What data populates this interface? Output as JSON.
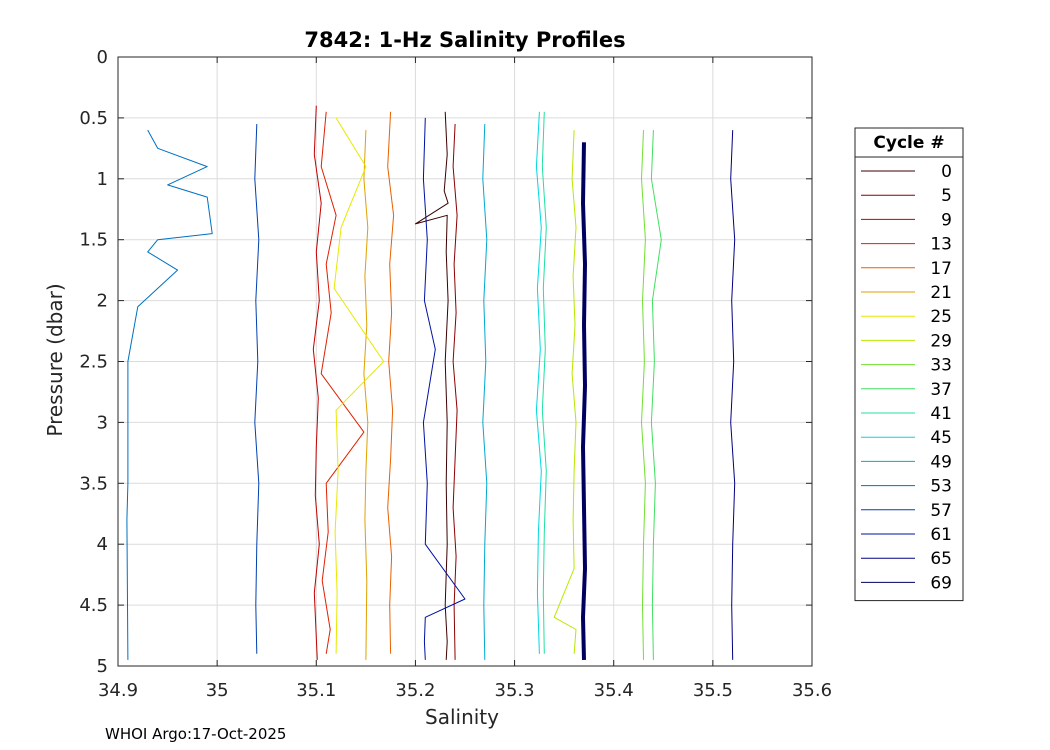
{
  "chart_data": {
    "type": "line",
    "title": "7842: 1-Hz Salinity Profiles",
    "xlabel": "Salinity",
    "ylabel": "Pressure (dbar)",
    "xlim": [
      34.9,
      35.6
    ],
    "ylim": [
      0,
      5
    ],
    "y_reversed": true,
    "grid": true,
    "xticks": [
      "34.9",
      "35",
      "35.1",
      "35.2",
      "35.3",
      "35.4",
      "35.5",
      "35.6"
    ],
    "yticks": [
      "0",
      "0.5",
      "1",
      "1.5",
      "2",
      "2.5",
      "3",
      "3.5",
      "4",
      "4.5",
      "5"
    ],
    "legend": {
      "title": "Cycle #",
      "placement": "outside-right",
      "entries": [
        {
          "label": "0",
          "color": "#3a0000"
        },
        {
          "label": "5",
          "color": "#8b0000"
        },
        {
          "label": "9",
          "color": "#c00000"
        },
        {
          "label": "13",
          "color": "#e02000"
        },
        {
          "label": "17",
          "color": "#e86000"
        },
        {
          "label": "21",
          "color": "#e0a000"
        },
        {
          "label": "25",
          "color": "#e8e800"
        },
        {
          "label": "29",
          "color": "#b8e800"
        },
        {
          "label": "33",
          "color": "#70e030"
        },
        {
          "label": "37",
          "color": "#40e060"
        },
        {
          "label": "41",
          "color": "#20e0a0"
        },
        {
          "label": "45",
          "color": "#00d8e0"
        },
        {
          "label": "49",
          "color": "#00a8d0"
        },
        {
          "label": "53",
          "color": "#0070c0"
        },
        {
          "label": "57",
          "color": "#0040b0"
        },
        {
          "label": "61",
          "color": "#0010a0"
        },
        {
          "label": "65",
          "color": "#000080"
        },
        {
          "label": "69",
          "color": "#000060"
        }
      ]
    },
    "series": [
      {
        "name": "0",
        "color": "#3a0000",
        "x": [
          35.23,
          35.232,
          35.229,
          35.233,
          35.2,
          35.232,
          35.231,
          35.233,
          35.23,
          35.232,
          35.231,
          35.232,
          35.23,
          35.232,
          35.231
        ],
        "y": [
          0.45,
          0.8,
          1.1,
          1.2,
          1.37,
          1.3,
          1.6,
          2.0,
          2.5,
          3.0,
          3.5,
          4.0,
          4.5,
          4.8,
          4.95
        ]
      },
      {
        "name": "5",
        "color": "#8b0000",
        "x": [
          35.24,
          35.238,
          35.242,
          35.239,
          35.241,
          35.238,
          35.242,
          35.24,
          35.238,
          35.241,
          35.239,
          35.24
        ],
        "y": [
          0.55,
          0.9,
          1.3,
          1.7,
          2.1,
          2.5,
          2.9,
          3.3,
          3.7,
          4.1,
          4.5,
          4.95
        ]
      },
      {
        "name": "9",
        "color": "#c00000",
        "x": [
          35.1,
          35.098,
          35.105,
          35.1,
          35.103,
          35.097,
          35.102,
          35.1,
          35.099,
          35.103,
          35.098,
          35.101
        ],
        "y": [
          0.4,
          0.8,
          1.2,
          1.6,
          2.0,
          2.4,
          2.8,
          3.2,
          3.6,
          4.0,
          4.4,
          4.95
        ]
      },
      {
        "name": "13",
        "color": "#e02000",
        "x": [
          35.11,
          35.105,
          35.12,
          35.11,
          35.115,
          35.105,
          35.148,
          35.11,
          35.112,
          35.106,
          35.114,
          35.11
        ],
        "y": [
          0.45,
          0.9,
          1.3,
          1.7,
          2.1,
          2.6,
          3.08,
          3.5,
          3.9,
          4.3,
          4.7,
          4.9
        ]
      },
      {
        "name": "17",
        "color": "#e86000",
        "x": [
          35.175,
          35.172,
          35.178,
          35.174,
          35.176,
          35.173,
          35.177,
          35.175,
          35.172,
          35.176,
          35.174,
          35.175
        ],
        "y": [
          0.45,
          0.9,
          1.3,
          1.7,
          2.1,
          2.5,
          2.9,
          3.3,
          3.7,
          4.1,
          4.5,
          4.9
        ]
      },
      {
        "name": "21",
        "color": "#e0a000",
        "x": [
          35.15,
          35.148,
          35.152,
          35.149,
          35.151,
          35.148,
          35.152,
          35.15,
          35.149,
          35.151,
          35.15
        ],
        "y": [
          0.6,
          1.0,
          1.4,
          1.8,
          2.2,
          2.6,
          3.0,
          3.4,
          3.8,
          4.3,
          4.95
        ]
      },
      {
        "name": "25",
        "color": "#e8e800",
        "x": [
          35.12,
          35.15,
          35.125,
          35.118,
          35.168,
          35.12,
          35.122,
          35.119,
          35.121,
          35.12
        ],
        "y": [
          0.5,
          0.9,
          1.4,
          1.9,
          2.5,
          2.9,
          3.4,
          3.9,
          4.4,
          4.9
        ]
      },
      {
        "name": "29",
        "color": "#b8e800",
        "x": [
          35.36,
          35.358,
          35.362,
          35.359,
          35.361,
          35.358,
          35.362,
          35.36,
          35.359,
          35.36,
          35.34,
          35.362,
          35.36
        ],
        "y": [
          0.6,
          1.0,
          1.4,
          1.8,
          2.2,
          2.6,
          3.0,
          3.4,
          3.8,
          4.2,
          4.6,
          4.7,
          4.9
        ]
      },
      {
        "name": "33",
        "color": "#70e030",
        "x": [
          35.43,
          35.428,
          35.432,
          35.429,
          35.431,
          35.428,
          35.432,
          35.43,
          35.429,
          35.43
        ],
        "y": [
          0.6,
          1.0,
          1.5,
          2.0,
          2.5,
          3.0,
          3.5,
          4.0,
          4.5,
          4.95
        ]
      },
      {
        "name": "37",
        "color": "#40e060",
        "x": [
          35.44,
          35.438,
          35.448,
          35.439,
          35.441,
          35.438,
          35.442,
          35.44,
          35.439,
          35.44
        ],
        "y": [
          0.6,
          1.0,
          1.5,
          2.0,
          2.5,
          3.0,
          3.5,
          4.0,
          4.5,
          4.95
        ]
      },
      {
        "name": "41",
        "color": "#20e0a0",
        "x": [
          35.33,
          35.328,
          35.332,
          35.329,
          35.331,
          35.328,
          35.332,
          35.33,
          35.329,
          35.33
        ],
        "y": [
          0.45,
          0.9,
          1.4,
          1.9,
          2.4,
          2.9,
          3.4,
          3.9,
          4.4,
          4.9
        ]
      },
      {
        "name": "45",
        "color": "#00d8e0",
        "x": [
          35.325,
          35.322,
          35.327,
          35.323,
          35.326,
          35.322,
          35.327,
          35.324,
          35.323,
          35.325
        ],
        "y": [
          0.45,
          0.9,
          1.4,
          1.9,
          2.4,
          2.9,
          3.4,
          3.9,
          4.4,
          4.9
        ]
      },
      {
        "name": "49",
        "color": "#00a8d0",
        "x": [
          35.27,
          35.268,
          35.272,
          35.269,
          35.271,
          35.268,
          35.272,
          35.27,
          35.269,
          35.27
        ],
        "y": [
          0.55,
          1.0,
          1.5,
          2.0,
          2.5,
          3.0,
          3.5,
          4.0,
          4.5,
          4.95
        ]
      },
      {
        "name": "53",
        "color": "#0070c0",
        "x": [
          34.93,
          34.94,
          34.99,
          34.95,
          34.99,
          34.995,
          34.94,
          34.93,
          34.96,
          34.92,
          34.91,
          34.91,
          34.909,
          34.91
        ],
        "y": [
          0.6,
          0.75,
          0.9,
          1.05,
          1.15,
          1.45,
          1.5,
          1.6,
          1.75,
          2.05,
          2.5,
          3.5,
          3.8,
          4.95
        ]
      },
      {
        "name": "57",
        "color": "#0040b0",
        "x": [
          35.04,
          35.038,
          35.042,
          35.039,
          35.041,
          35.038,
          35.042,
          35.04,
          35.039,
          35.04
        ],
        "y": [
          0.55,
          1.0,
          1.5,
          2.0,
          2.5,
          3.0,
          3.5,
          4.0,
          4.5,
          4.9
        ]
      },
      {
        "name": "61",
        "color": "#0010a0",
        "x": [
          35.21,
          35.208,
          35.212,
          35.209,
          35.22,
          35.208,
          35.212,
          35.21,
          35.25,
          35.21,
          35.209,
          35.21
        ],
        "y": [
          0.5,
          1.0,
          1.5,
          2.0,
          2.4,
          3.0,
          3.5,
          4.0,
          4.45,
          4.6,
          4.8,
          4.95
        ]
      },
      {
        "name": "65",
        "color": "#000080",
        "x": [
          35.52,
          35.518,
          35.522,
          35.519,
          35.521,
          35.518,
          35.522,
          35.52,
          35.519,
          35.52
        ],
        "y": [
          0.6,
          1.0,
          1.5,
          2.0,
          2.5,
          3.0,
          3.5,
          4.0,
          4.5,
          4.95
        ]
      },
      {
        "name": "69",
        "color": "#000060",
        "x": [
          35.37,
          35.369,
          35.371,
          35.37,
          35.371,
          35.369,
          35.37,
          35.371,
          35.369,
          35.37
        ],
        "y": [
          0.7,
          1.2,
          1.7,
          2.2,
          2.7,
          3.2,
          3.7,
          4.2,
          4.6,
          4.95
        ]
      }
    ]
  },
  "footer_text": "WHOI Argo:17-Oct-2025"
}
